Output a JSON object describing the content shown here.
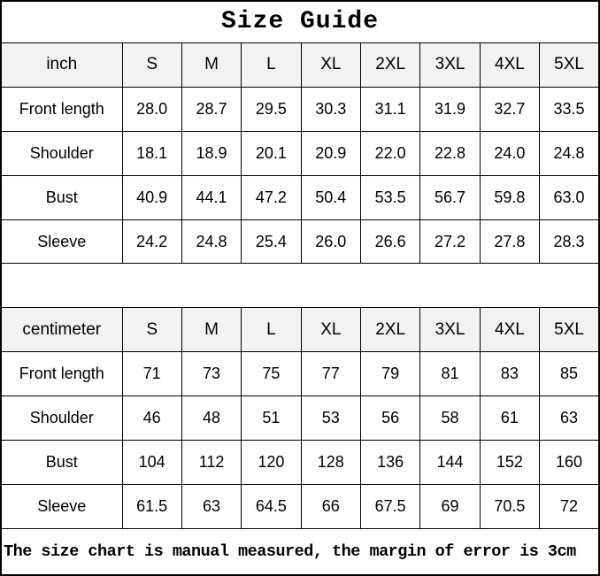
{
  "title": "Size Guide",
  "footer_note": "The size chart is manual measured, the margin of error is 3cm",
  "colors": {
    "background": "#ffffff",
    "header_row_bg": "#f2f2f2",
    "border": "#000000",
    "text": "#000000"
  },
  "tables": [
    {
      "unit_label": "inch",
      "sizes": [
        "S",
        "M",
        "L",
        "XL",
        "2XL",
        "3XL",
        "4XL",
        "5XL"
      ],
      "rows": [
        {
          "label": "Front length",
          "values": [
            "28.0",
            "28.7",
            "29.5",
            "30.3",
            "31.1",
            "31.9",
            "32.7",
            "33.5"
          ]
        },
        {
          "label": "Shoulder",
          "values": [
            "18.1",
            "18.9",
            "20.1",
            "20.9",
            "22.0",
            "22.8",
            "24.0",
            "24.8"
          ]
        },
        {
          "label": "Bust",
          "values": [
            "40.9",
            "44.1",
            "47.2",
            "50.4",
            "53.5",
            "56.7",
            "59.8",
            "63.0"
          ]
        },
        {
          "label": "Sleeve",
          "values": [
            "24.2",
            "24.8",
            "25.4",
            "26.0",
            "26.6",
            "27.2",
            "27.8",
            "28.3"
          ]
        }
      ]
    },
    {
      "unit_label": "centimeter",
      "sizes": [
        "S",
        "M",
        "L",
        "XL",
        "2XL",
        "3XL",
        "4XL",
        "5XL"
      ],
      "rows": [
        {
          "label": "Front length",
          "values": [
            "71",
            "73",
            "75",
            "77",
            "79",
            "81",
            "83",
            "85"
          ]
        },
        {
          "label": "Shoulder",
          "values": [
            "46",
            "48",
            "51",
            "53",
            "56",
            "58",
            "61",
            "63"
          ]
        },
        {
          "label": "Bust",
          "values": [
            "104",
            "112",
            "120",
            "128",
            "136",
            "144",
            "152",
            "160"
          ]
        },
        {
          "label": "Sleeve",
          "values": [
            "61.5",
            "63",
            "64.5",
            "66",
            "67.5",
            "69",
            "70.5",
            "72"
          ]
        }
      ]
    }
  ]
}
